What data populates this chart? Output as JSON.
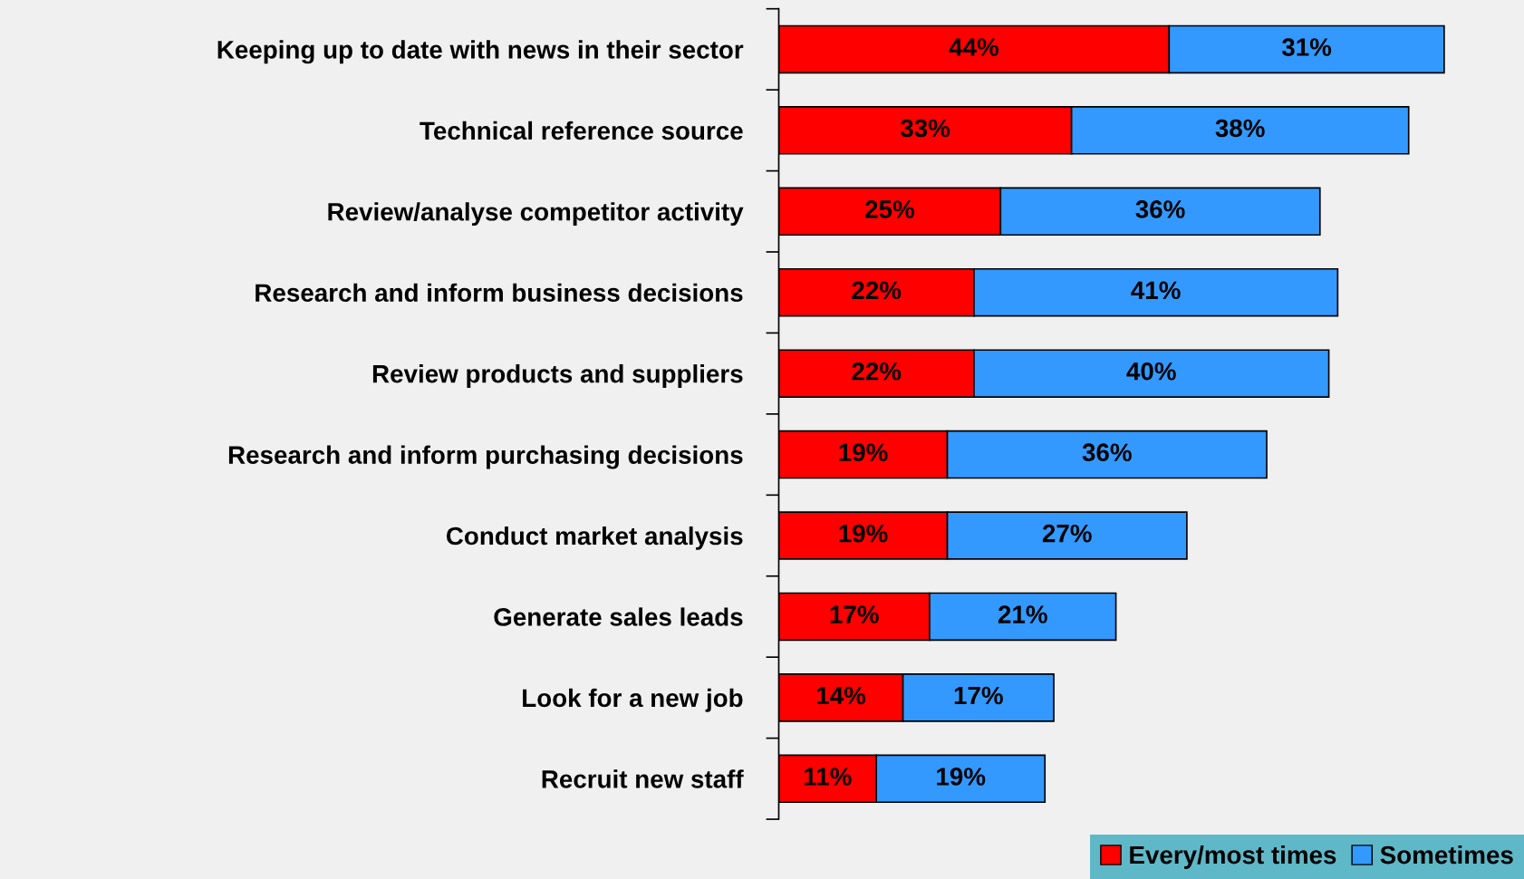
{
  "chart_data": {
    "type": "bar",
    "orientation": "horizontal",
    "stacked": true,
    "legend": "bottom right",
    "grid": false,
    "tick_labels": "y",
    "categories": [
      "Keeping up to date with news in their sector",
      "Technical reference source",
      "Review/analyse competitor activity",
      "Research and inform business decisions",
      "Review products and suppliers",
      "Research and inform purchasing decisions",
      "Conduct market analysis",
      "Generate sales leads",
      "Look for a new job",
      "Recruit new staff"
    ],
    "series": [
      {
        "name": "Every/most times",
        "color": "#ff0000",
        "values": [
          44,
          33,
          25,
          22,
          22,
          19,
          19,
          17,
          14,
          11
        ],
        "value_labels": [
          "44%",
          "33%",
          "25%",
          "22%",
          "22%",
          "19%",
          "19%",
          "17%",
          "14%",
          "11%"
        ]
      },
      {
        "name": "Sometimes",
        "color": "#3399ff",
        "values": [
          31,
          38,
          36,
          41,
          40,
          36,
          27,
          21,
          17,
          19
        ],
        "value_labels": [
          "31%",
          "38%",
          "36%",
          "41%",
          "40%",
          "36%",
          "27%",
          "21%",
          "17%",
          "19%"
        ]
      }
    ]
  }
}
